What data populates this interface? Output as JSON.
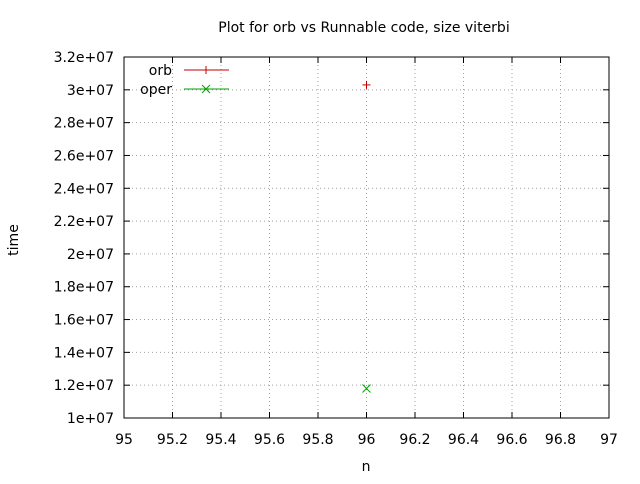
{
  "chart_data": {
    "type": "scatter",
    "title": "Plot for orb vs Runnable code, size viterbi",
    "xlabel": "n",
    "ylabel": "time",
    "xlim": [
      95,
      97
    ],
    "ylim": [
      10000000,
      32000000
    ],
    "x_ticks": [
      95,
      95.2,
      95.4,
      95.6,
      95.8,
      96,
      96.2,
      96.4,
      96.6,
      96.8,
      97
    ],
    "x_tick_labels": [
      "95",
      "95.2",
      "95.4",
      "95.6",
      "95.8",
      "96",
      "96.2",
      "96.4",
      "96.6",
      "96.8",
      "97"
    ],
    "y_ticks": [
      10000000,
      12000000,
      14000000,
      16000000,
      18000000,
      20000000,
      22000000,
      24000000,
      26000000,
      28000000,
      30000000,
      32000000
    ],
    "y_tick_labels": [
      "1e+07",
      "1.2e+07",
      "1.4e+07",
      "1.6e+07",
      "1.8e+07",
      "2e+07",
      "2.2e+07",
      "2.4e+07",
      "2.6e+07",
      "2.8e+07",
      "3e+07",
      "3.2e+07"
    ],
    "grid": true,
    "legend_position": "top-left",
    "series": [
      {
        "name": "orb",
        "marker": "plus",
        "color": "#c00000",
        "points": [
          {
            "x": 96,
            "y": 30300000
          }
        ]
      },
      {
        "name": "oper",
        "marker": "cross",
        "color": "#00a000",
        "points": [
          {
            "x": 96,
            "y": 11800000
          }
        ]
      }
    ]
  }
}
